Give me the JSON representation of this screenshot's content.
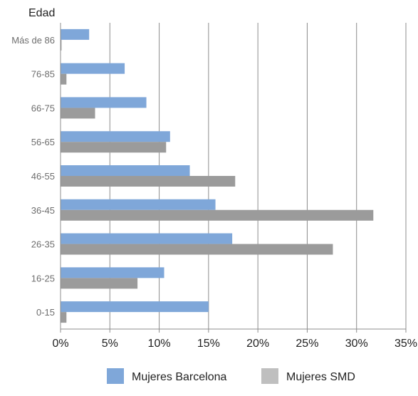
{
  "chart_data": {
    "type": "bar",
    "orientation": "horizontal",
    "title": "",
    "ylabel": "Edad",
    "xlabel": "",
    "categories": [
      "Más de 86",
      "76-85",
      "66-75",
      "56-65",
      "46-55",
      "36-45",
      "26-35",
      "16-25",
      "0-15"
    ],
    "series": [
      {
        "name": "Mujeres Barcelona",
        "color": "#7FA7D9",
        "values": [
          2.9,
          6.5,
          8.7,
          11.1,
          13.1,
          15.7,
          17.4,
          10.5,
          15.0
        ]
      },
      {
        "name": "Mujeres SMD",
        "color": "#9B9B9B",
        "values": [
          0.1,
          0.6,
          3.5,
          10.7,
          17.7,
          31.7,
          27.6,
          7.8,
          0.6
        ]
      }
    ],
    "xlim": [
      0,
      35
    ],
    "xticks": [
      0,
      5,
      10,
      15,
      20,
      25,
      30,
      35
    ],
    "xtick_labels": [
      "0%",
      "5%",
      "10%",
      "15%",
      "20%",
      "25%",
      "30%",
      "35%"
    ],
    "grid": "vertical",
    "legend_position": "bottom",
    "legend_swatch_colors": [
      "#7FA7D9",
      "#BFBFBF"
    ]
  }
}
